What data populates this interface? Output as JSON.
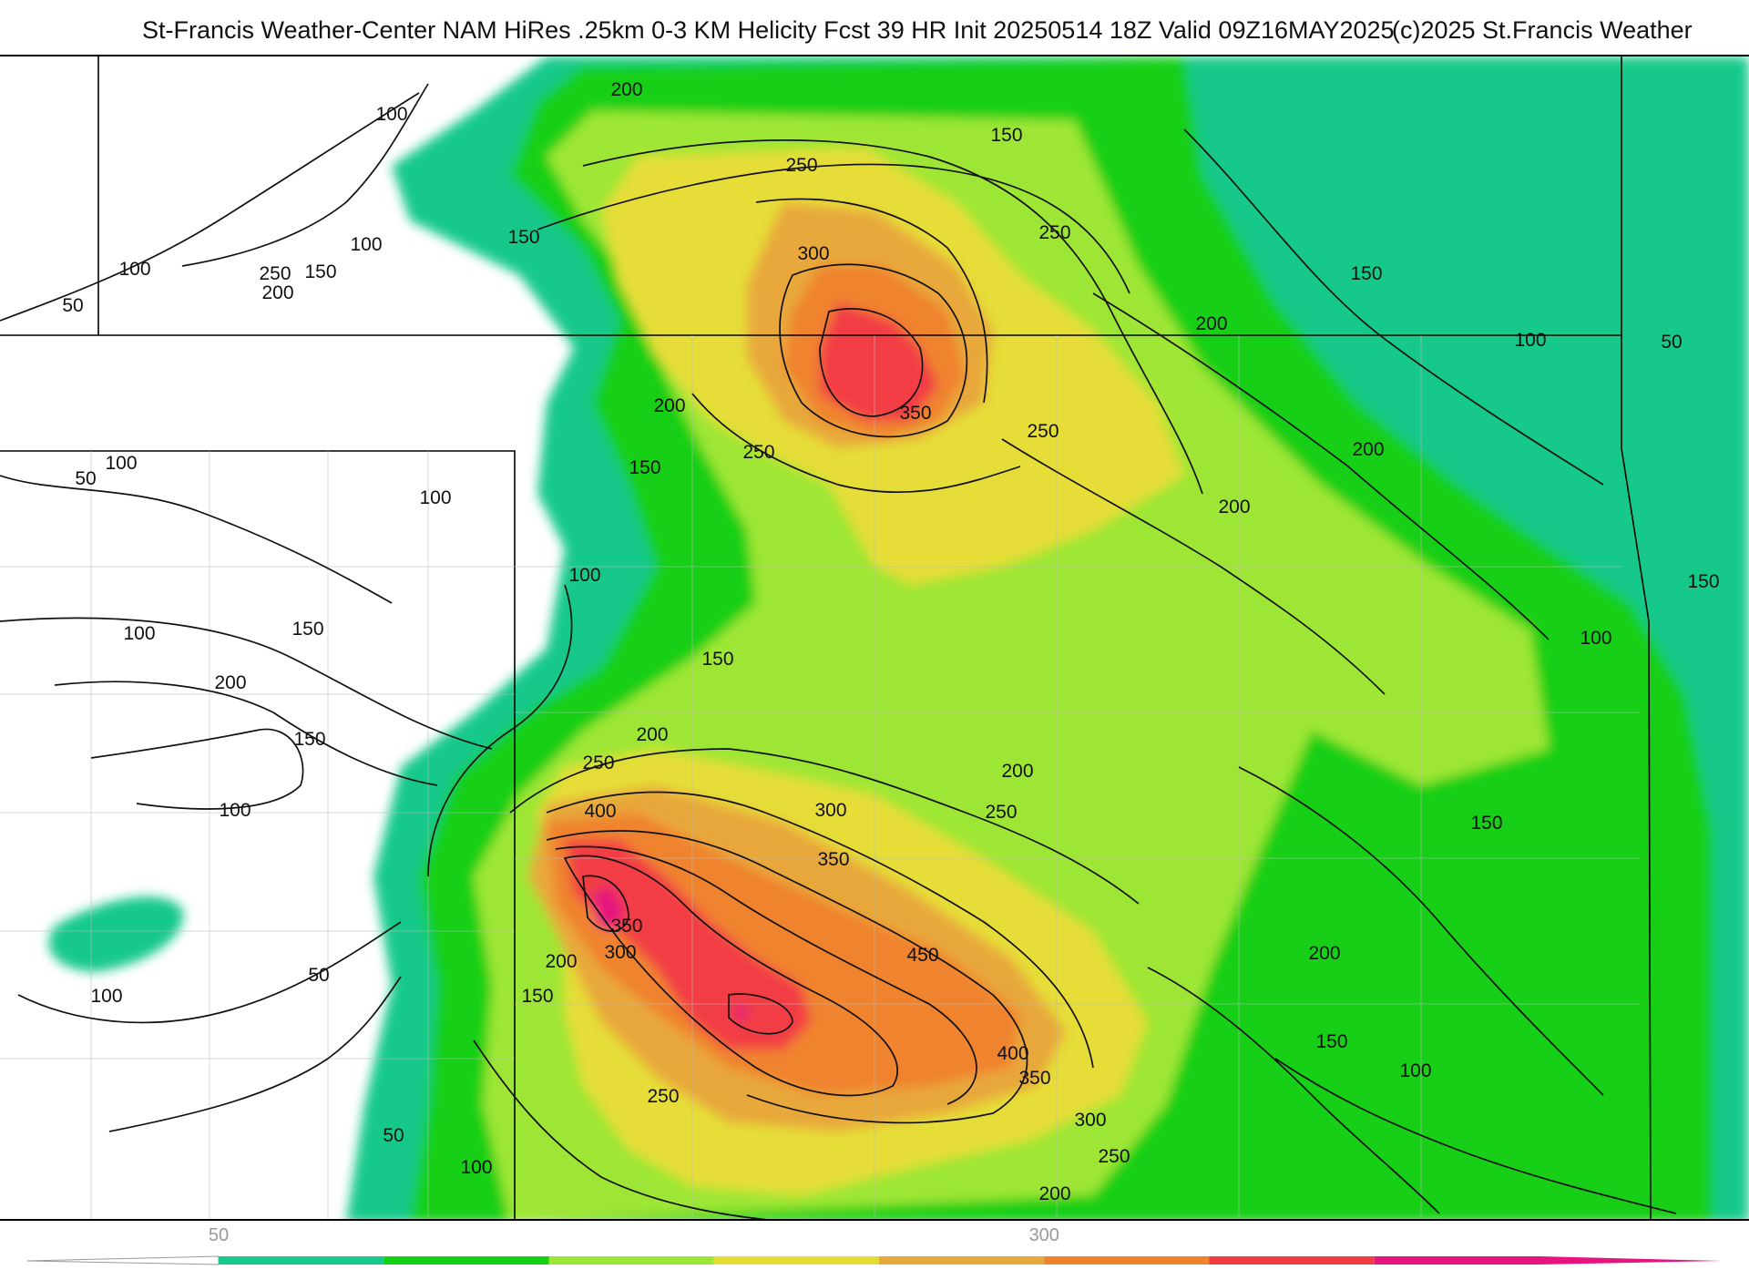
{
  "title": {
    "main": "St-Francis Weather-Center NAM HiRes .25km 0-3 KM Helicity Fcst 39 HR Init 20250514 18Z  Valid 09Z16MAY2025",
    "copyright": "(c)2025 St.Francis Weather"
  },
  "legend": {
    "ticks": [
      {
        "value": 50,
        "label": "50"
      },
      {
        "value": 300,
        "label": "300"
      }
    ],
    "bins": [
      {
        "from": 50,
        "to": 100,
        "color": "#19c98a"
      },
      {
        "from": 100,
        "to": 150,
        "color": "#14cf14"
      },
      {
        "from": 150,
        "to": 200,
        "color": "#9ee635"
      },
      {
        "from": 200,
        "to": 250,
        "color": "#e6dd38"
      },
      {
        "from": 250,
        "to": 300,
        "color": "#e8a83a"
      },
      {
        "from": 300,
        "to": 350,
        "color": "#f0832e"
      },
      {
        "from": 350,
        "to": 400,
        "color": "#f23c45"
      },
      {
        "from": 400,
        "to": 450,
        "color": "#e6157e"
      }
    ]
  },
  "contour_labels": [
    {
      "text": "200"
    },
    {
      "text": "150"
    },
    {
      "text": "100"
    },
    {
      "text": "250"
    },
    {
      "text": "150"
    },
    {
      "text": "100"
    },
    {
      "text": "300"
    },
    {
      "text": "250"
    },
    {
      "text": "150"
    },
    {
      "text": "250"
    },
    {
      "text": "150"
    },
    {
      "text": "100"
    },
    {
      "text": "200"
    },
    {
      "text": "50"
    },
    {
      "text": "200"
    },
    {
      "text": "100"
    },
    {
      "text": "50"
    },
    {
      "text": "350"
    },
    {
      "text": "200"
    },
    {
      "text": "250"
    },
    {
      "text": "250"
    },
    {
      "text": "150"
    },
    {
      "text": "200"
    },
    {
      "text": "100"
    },
    {
      "text": "50"
    },
    {
      "text": "100"
    },
    {
      "text": "200"
    },
    {
      "text": "100"
    },
    {
      "text": "100"
    },
    {
      "text": "150"
    },
    {
      "text": "150"
    },
    {
      "text": "100"
    },
    {
      "text": "200"
    },
    {
      "text": "150"
    },
    {
      "text": "150"
    },
    {
      "text": "200"
    },
    {
      "text": "200"
    },
    {
      "text": "250"
    },
    {
      "text": "400"
    },
    {
      "text": "300"
    },
    {
      "text": "250"
    },
    {
      "text": "100"
    },
    {
      "text": "350"
    },
    {
      "text": "150"
    },
    {
      "text": "350"
    },
    {
      "text": "450"
    },
    {
      "text": "300"
    },
    {
      "text": "200"
    },
    {
      "text": "200"
    },
    {
      "text": "50"
    },
    {
      "text": "150"
    },
    {
      "text": "400"
    },
    {
      "text": "150"
    },
    {
      "text": "100"
    },
    {
      "text": "100"
    },
    {
      "text": "350"
    },
    {
      "text": "250"
    },
    {
      "text": "300"
    },
    {
      "text": "50"
    },
    {
      "text": "250"
    },
    {
      "text": "100"
    },
    {
      "text": "200"
    }
  ]
}
